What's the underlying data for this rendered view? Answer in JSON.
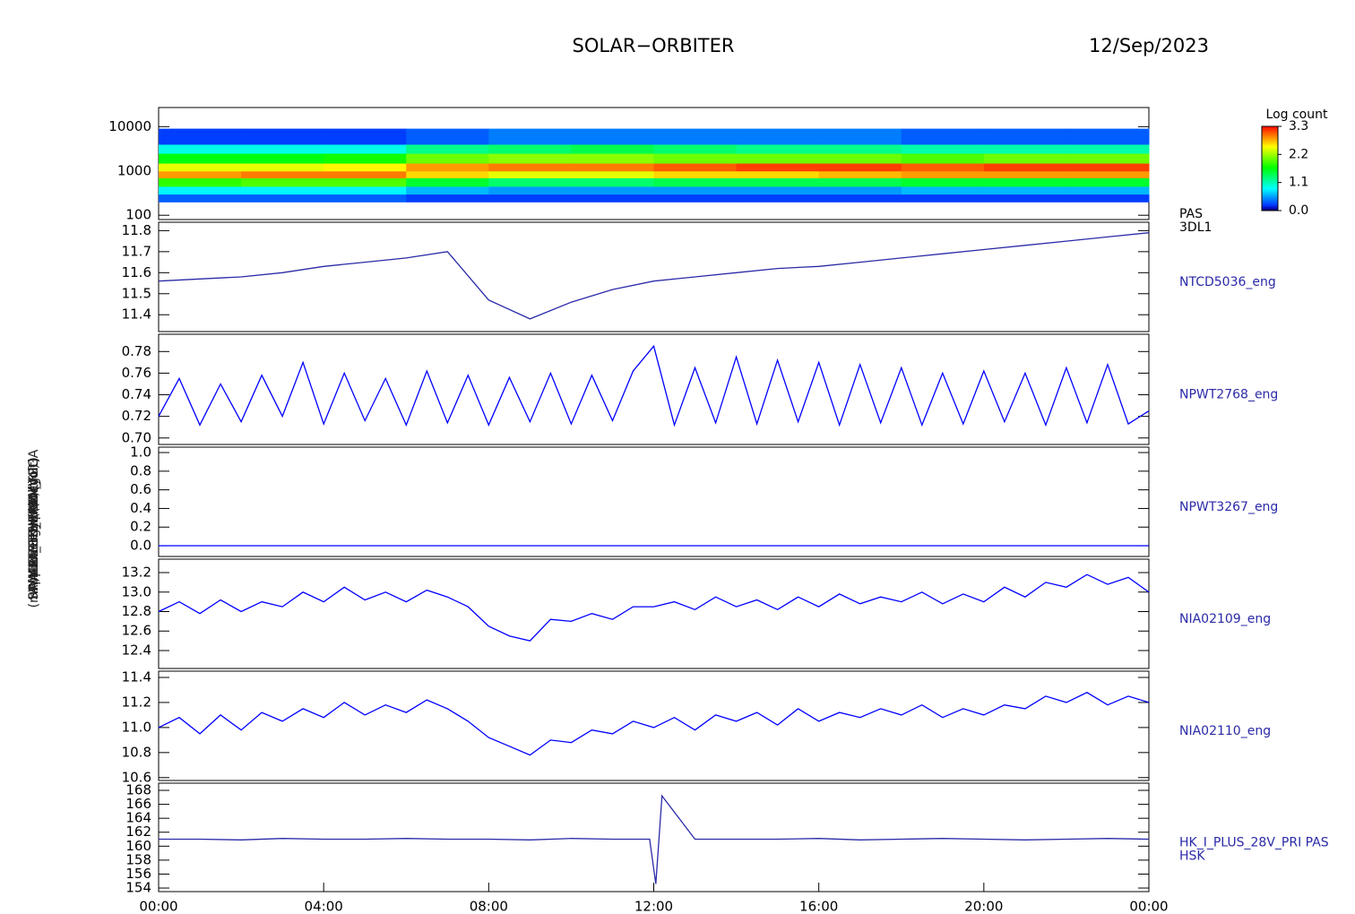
{
  "header": {
    "title": "SOLAR−ORBITER",
    "date": "12/Sep/2023"
  },
  "chart_data": [
    {
      "type": "heatmap",
      "ylabel": "Energy (eV)",
      "label": [
        "PAS",
        "3DL1"
      ],
      "log": true,
      "xlim": [
        0,
        24
      ],
      "ylim": [
        80,
        27000
      ],
      "yticks": [
        100,
        1000,
        10000
      ],
      "xbins": [
        0,
        2,
        4,
        6,
        8,
        10,
        12,
        14,
        16,
        18,
        20,
        22,
        24
      ],
      "ybins": [
        200,
        300,
        450,
        700,
        1000,
        1500,
        2500,
        4000,
        9000
      ],
      "z": [
        [
          0.3,
          0.8,
          1.8,
          2.8,
          2.4,
          1.6,
          0.9,
          0.2
        ],
        [
          0.3,
          0.8,
          1.9,
          2.9,
          2.4,
          1.6,
          0.9,
          0.2
        ],
        [
          0.3,
          0.8,
          1.9,
          2.9,
          2.5,
          1.7,
          0.9,
          0.2
        ],
        [
          0.2,
          0.6,
          1.5,
          2.6,
          2.8,
          2.0,
          1.2,
          0.3
        ],
        [
          0.2,
          0.5,
          1.3,
          2.4,
          2.9,
          2.1,
          1.3,
          0.4
        ],
        [
          0.2,
          0.5,
          1.3,
          2.4,
          2.9,
          2.1,
          1.4,
          0.4
        ],
        [
          0.2,
          0.5,
          1.4,
          2.6,
          3.0,
          2.0,
          1.3,
          0.4
        ],
        [
          0.2,
          0.5,
          1.4,
          2.6,
          3.1,
          2.0,
          1.2,
          0.4
        ],
        [
          0.2,
          0.5,
          1.4,
          2.7,
          3.1,
          2.0,
          1.2,
          0.4
        ],
        [
          0.2,
          0.6,
          1.5,
          2.8,
          3.0,
          1.9,
          1.1,
          0.3
        ],
        [
          0.2,
          0.6,
          1.5,
          2.8,
          3.1,
          2.0,
          1.1,
          0.3
        ],
        [
          0.2,
          0.6,
          1.5,
          2.8,
          3.1,
          2.0,
          1.1,
          0.3
        ]
      ],
      "zlabel": "Log count",
      "zlim": [
        0,
        3.3
      ],
      "zticks": [
        {
          "value": 0,
          "label": "0.0"
        },
        1.1,
        2.2,
        3.3
      ]
    },
    {
      "type": "line",
      "ylabel": "Approx Temp (DegC)",
      "label": [
        "NTCD5036_eng"
      ],
      "color": "#2a2aa8",
      "xlim": [
        0,
        24
      ],
      "ylim": [
        11.32,
        11.84
      ],
      "yticks": [
        11.4,
        11.5,
        11.6,
        11.7,
        11.8
      ],
      "x": [
        0,
        1,
        2,
        3,
        4,
        5,
        6,
        7,
        8,
        9,
        10,
        11,
        12,
        13,
        14,
        15,
        16,
        17,
        18,
        19,
        20,
        21,
        22,
        23,
        24
      ],
      "values": [
        11.56,
        11.57,
        11.58,
        11.6,
        11.63,
        11.65,
        11.67,
        11.7,
        11.47,
        11.38,
        11.46,
        11.52,
        11.56,
        11.58,
        11.6,
        11.62,
        11.63,
        11.65,
        11.67,
        11.69,
        11.71,
        11.73,
        11.75,
        11.77,
        11.79
      ]
    },
    {
      "type": "line",
      "ylabel": "SWA-EAS THERM (Volt)",
      "label": [
        "NPWT2768_eng"
      ],
      "color": "#0000ff",
      "xlim": [
        0,
        24
      ],
      "ylim": [
        0.694,
        0.796
      ],
      "yticks": [
        {
          "value": 0.7,
          "label": "0.70"
        },
        0.72,
        0.74,
        0.76,
        0.78
      ],
      "x": [
        0,
        0.5,
        1,
        1.5,
        2,
        2.5,
        3,
        3.5,
        4,
        4.5,
        5,
        5.5,
        6,
        6.5,
        7,
        7.5,
        8,
        8.5,
        9,
        9.5,
        10,
        10.5,
        11,
        11.5,
        12,
        12.5,
        13,
        13.5,
        14,
        14.5,
        15,
        15.5,
        16,
        16.5,
        17,
        17.5,
        18,
        18.5,
        19,
        19.5,
        20,
        20.5,
        21,
        21.5,
        22,
        22.5,
        23,
        23.5,
        24
      ],
      "values": [
        0.72,
        0.755,
        0.712,
        0.75,
        0.715,
        0.758,
        0.72,
        0.77,
        0.713,
        0.76,
        0.716,
        0.755,
        0.712,
        0.762,
        0.714,
        0.758,
        0.712,
        0.756,
        0.715,
        0.76,
        0.713,
        0.758,
        0.716,
        0.762,
        0.785,
        0.712,
        0.765,
        0.714,
        0.775,
        0.713,
        0.772,
        0.715,
        0.77,
        0.712,
        0.768,
        0.714,
        0.765,
        0.712,
        0.76,
        0.713,
        0.762,
        0.715,
        0.76,
        0.712,
        0.765,
        0.714,
        0.768,
        0.713,
        0.725
      ]
    },
    {
      "type": "line",
      "ylabel": "RPW LFR THERM (Volt)",
      "label": [
        "NPWT3267_eng"
      ],
      "color": "#0000ff",
      "xlim": [
        0,
        24
      ],
      "ylim": [
        -0.115,
        1.058
      ],
      "yticks": [
        {
          "value": 0,
          "label": "0.0"
        },
        0.2,
        0.4,
        0.6,
        0.8,
        {
          "value": 1,
          "label": "1.0"
        }
      ],
      "x": [
        0,
        24
      ],
      "values": [
        0,
        0
      ]
    },
    {
      "type": "line",
      "ylabel": "MAG 1.5V (Volt)",
      "label": [
        "NIA02109_eng"
      ],
      "color": "#0000ff",
      "xlim": [
        0,
        24
      ],
      "ylim": [
        12.216,
        13.338
      ],
      "yticks": [
        12.4,
        12.6,
        12.8,
        {
          "value": 13,
          "label": "13.0"
        },
        13.2
      ],
      "x": [
        0,
        0.5,
        1,
        1.5,
        2,
        2.5,
        3,
        3.5,
        4,
        4.5,
        5,
        5.5,
        6,
        6.5,
        7,
        7.5,
        8,
        8.5,
        9,
        9.5,
        10,
        10.5,
        11,
        11.5,
        12,
        12.5,
        13,
        13.5,
        14,
        14.5,
        15,
        15.5,
        16,
        16.5,
        17,
        17.5,
        18,
        18.5,
        19,
        19.5,
        20,
        20.5,
        21,
        21.5,
        22,
        22.5,
        23,
        23.5,
        24
      ],
      "values": [
        12.8,
        12.9,
        12.78,
        12.92,
        12.8,
        12.9,
        12.85,
        13.0,
        12.9,
        13.05,
        12.92,
        13.0,
        12.9,
        13.02,
        12.95,
        12.85,
        12.65,
        12.55,
        12.5,
        12.72,
        12.7,
        12.78,
        12.72,
        12.85,
        12.85,
        12.9,
        12.82,
        12.95,
        12.85,
        12.92,
        12.82,
        12.95,
        12.85,
        12.98,
        12.88,
        12.95,
        12.9,
        13.0,
        12.88,
        12.98,
        12.9,
        13.05,
        12.95,
        13.1,
        13.05,
        13.18,
        13.08,
        13.15,
        13.0
      ]
    },
    {
      "type": "line",
      "ylabel": "MAG 1.2V (Volt)",
      "label": [
        "NIA02110_eng"
      ],
      "color": "#0000ff",
      "xlim": [
        0,
        24
      ],
      "ylim": [
        10.577,
        11.45
      ],
      "yticks": [
        10.6,
        10.8,
        {
          "value": 11,
          "label": "11.0"
        },
        11.2,
        11.4
      ],
      "x": [
        0,
        0.5,
        1,
        1.5,
        2,
        2.5,
        3,
        3.5,
        4,
        4.5,
        5,
        5.5,
        6,
        6.5,
        7,
        7.5,
        8,
        8.5,
        9,
        9.5,
        10,
        10.5,
        11,
        11.5,
        12,
        12.5,
        13,
        13.5,
        14,
        14.5,
        15,
        15.5,
        16,
        16.5,
        17,
        17.5,
        18,
        18.5,
        19,
        19.5,
        20,
        20.5,
        21,
        21.5,
        22,
        22.5,
        23,
        23.5,
        24
      ],
      "values": [
        11.0,
        11.08,
        10.95,
        11.1,
        10.98,
        11.12,
        11.05,
        11.15,
        11.08,
        11.2,
        11.1,
        11.18,
        11.12,
        11.22,
        11.15,
        11.05,
        10.92,
        10.85,
        10.78,
        10.9,
        10.88,
        10.98,
        10.95,
        11.05,
        11.0,
        11.08,
        10.98,
        11.1,
        11.05,
        11.12,
        11.02,
        11.15,
        11.05,
        11.12,
        11.08,
        11.15,
        11.1,
        11.18,
        11.08,
        11.15,
        11.1,
        11.18,
        11.15,
        11.25,
        11.2,
        11.28,
        11.18,
        11.25,
        11.2
      ]
    },
    {
      "type": "line",
      "ylabel": "(mA) DM_HK_IMON_FPGA",
      "label": [
        "HK_I_PLUS_28V_PRI PAS",
        "HSK"
      ],
      "color": "#2a2aa8",
      "xlim": [
        0,
        24
      ],
      "ylim": [
        153.49,
        169.03
      ],
      "yticks": [
        154,
        156,
        158,
        160,
        162,
        164,
        166,
        168
      ],
      "x": [
        0,
        1,
        2,
        3,
        4,
        5,
        6,
        7,
        8,
        9,
        10,
        11,
        11.9,
        12.05,
        12.2,
        13,
        14,
        15,
        16,
        17,
        18,
        19,
        20,
        21,
        22,
        23,
        24
      ],
      "values": [
        161,
        161,
        160.9,
        161.1,
        161,
        161,
        161.1,
        161,
        161,
        160.9,
        161.1,
        161,
        161,
        154.6,
        167.2,
        161,
        161,
        161,
        161.1,
        160.9,
        161,
        161.1,
        161,
        160.9,
        161,
        161.1,
        161
      ],
      "xticks": [
        {
          "value": 0,
          "label": "00:00"
        },
        {
          "value": 4,
          "label": "04:00"
        },
        {
          "value": 8,
          "label": "08:00"
        },
        {
          "value": 12,
          "label": "12:00"
        },
        {
          "value": 16,
          "label": "16:00"
        },
        {
          "value": 20,
          "label": "20:00"
        },
        {
          "value": 24,
          "label": "00:00"
        }
      ]
    }
  ]
}
